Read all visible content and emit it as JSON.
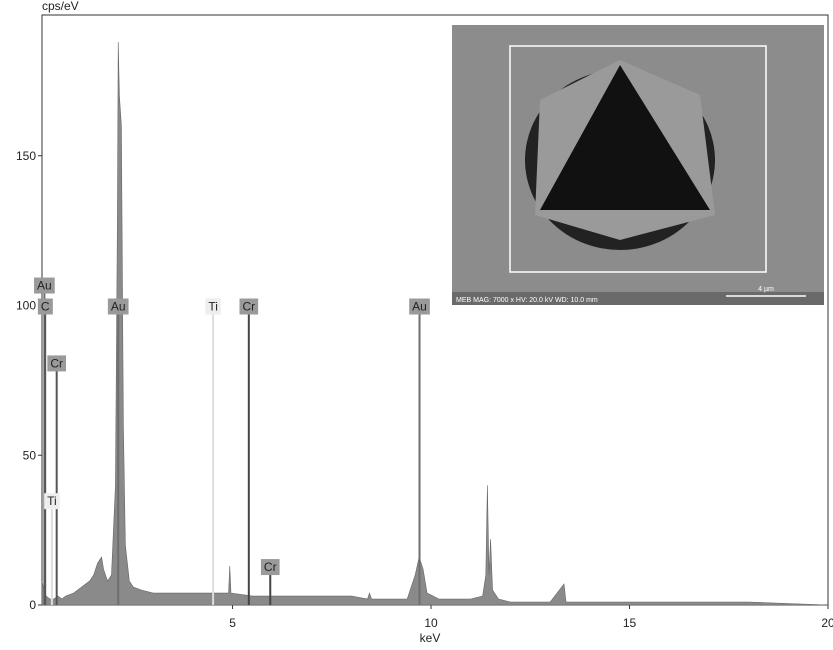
{
  "chart_data": {
    "type": "area",
    "y_label": "cps/eV",
    "x_label": "keV",
    "color": "#8a8a8a",
    "xlim": [
      0.2,
      20
    ],
    "ylim": [
      0,
      197
    ],
    "xticks": [
      5,
      10,
      15,
      20
    ],
    "yticks": [
      0,
      50,
      100,
      150
    ],
    "x": [
      0.2,
      0.25,
      0.3,
      0.4,
      0.5,
      0.6,
      0.7,
      0.8,
      1.0,
      1.2,
      1.4,
      1.5,
      1.6,
      1.7,
      1.75,
      1.85,
      1.95,
      2.05,
      2.1,
      2.12,
      2.15,
      2.2,
      2.25,
      2.3,
      2.4,
      2.5,
      2.7,
      3.0,
      3.5,
      4.0,
      4.5,
      4.9,
      4.93,
      4.96,
      5.5,
      6.0,
      7.0,
      8.0,
      8.4,
      8.45,
      8.5,
      9.4,
      9.6,
      9.7,
      9.8,
      9.9,
      10.2,
      11.0,
      11.3,
      11.38,
      11.42,
      11.46,
      11.5,
      11.55,
      11.7,
      12.0,
      13.0,
      13.35,
      13.4,
      15.0,
      18.0,
      19.0,
      20.0
    ],
    "values": [
      8,
      5,
      3,
      2,
      2,
      3,
      2,
      3,
      4,
      6,
      8,
      10,
      14,
      16,
      12,
      8,
      10,
      40,
      130,
      188,
      170,
      160,
      60,
      20,
      8,
      6,
      5,
      4,
      4,
      4,
      4,
      4,
      13,
      4,
      3,
      3,
      3,
      3,
      2,
      4,
      2,
      2,
      10,
      16,
      12,
      4,
      2,
      2,
      3,
      10,
      40,
      10,
      22,
      5,
      2,
      1,
      1,
      7,
      1,
      1,
      1,
      0.5,
      0
    ],
    "markers": [
      {
        "label": "Au",
        "x": 0.26,
        "height": 107,
        "color": "#6e6e6e"
      },
      {
        "label": "C",
        "x": 0.28,
        "height": 100,
        "color": "#555555"
      },
      {
        "label": "Cr",
        "x": 0.57,
        "height": 81,
        "color": "#555555"
      },
      {
        "label": "Ti",
        "x": 0.45,
        "height": 35,
        "color": "#dddddd"
      },
      {
        "label": "Au",
        "x": 2.12,
        "height": 100,
        "color": "#6e6e6e"
      },
      {
        "label": "Ti",
        "x": 4.51,
        "height": 100,
        "color": "#dddddd"
      },
      {
        "label": "Cr",
        "x": 5.41,
        "height": 100,
        "color": "#444444"
      },
      {
        "label": "Au",
        "x": 9.71,
        "height": 100,
        "color": "#6e6e6e"
      },
      {
        "label": "Cr",
        "x": 5.95,
        "height": 13,
        "color": "#444444"
      }
    ]
  },
  "inset": {
    "caption": "MEB MAG: 7000 x HV: 20.0 kV WD: 10.0 mm",
    "scale_label": "4 µm"
  }
}
